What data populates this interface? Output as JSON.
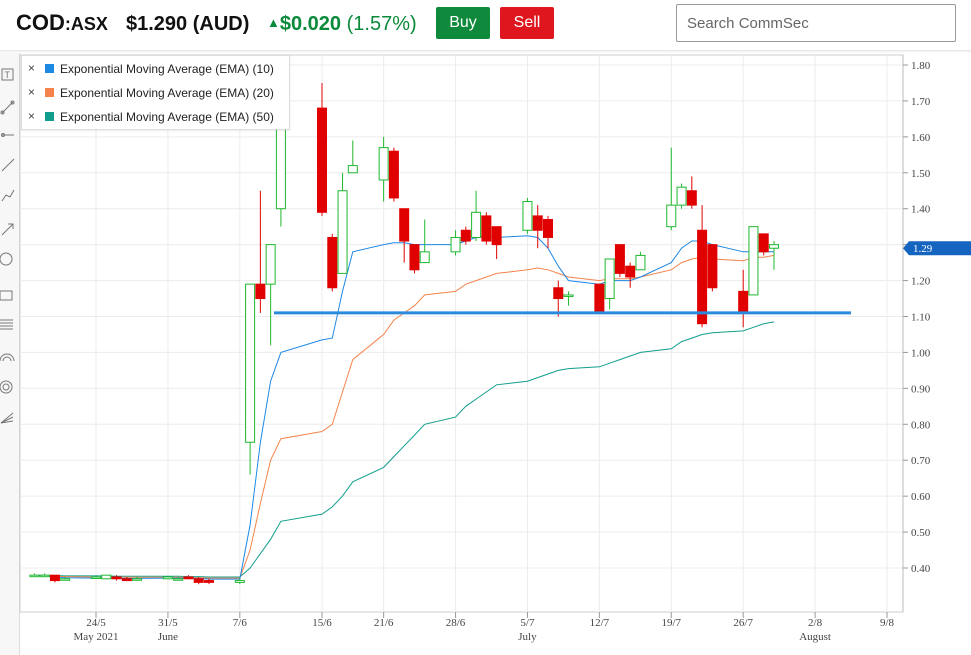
{
  "header": {
    "ticker": "COD",
    "exchange": ":ASX",
    "price": "$1.290 (AUD)",
    "change_arrow": "▲",
    "change_amount": "$0.020",
    "change_percent": "(1.57%)",
    "buy_label": "Buy",
    "sell_label": "Sell",
    "search_placeholder": "Search CommSec",
    "colors": {
      "up": "#0a8a3a",
      "buy": "#0f8a3c",
      "sell": "#e0161e"
    }
  },
  "toolbar": {
    "icons": [
      "text-tool-icon",
      "line-tool-icon",
      "ray-tool-icon",
      "trendline-icon",
      "polyline-icon",
      "arrow-tool-icon",
      "circle-tool-icon",
      "rectangle-tool-icon",
      "fibonacci-icon",
      "arc-tool-icon",
      "spiral-tool-icon",
      "gann-fan-icon"
    ]
  },
  "legend": {
    "items": [
      {
        "label": "Exponential Moving Average (EMA) (10)",
        "color": "#1e88e5"
      },
      {
        "label": "Exponential Moving Average (EMA) (20)",
        "color": "#f4844c"
      },
      {
        "label": "Exponential Moving Average (EMA) (50)",
        "color": "#129e8c"
      }
    ],
    "remove_glyph": "×"
  },
  "chart_data": {
    "type": "candlestick",
    "title": "",
    "ylim": [
      0.3,
      1.82
    ],
    "yticks": [
      0.4,
      0.5,
      0.6,
      0.7,
      0.8,
      0.9,
      1.0,
      1.1,
      1.2,
      1.3,
      1.4,
      1.5,
      1.6,
      1.7,
      1.8
    ],
    "ytick_labels": [
      "0.40",
      "0.50",
      "0.60",
      "0.70",
      "0.80",
      "0.90",
      "1.00",
      "1.10",
      "1.20",
      "1.30",
      "1.40",
      "1.50",
      "1.60",
      "1.70",
      "1.80"
    ],
    "current_price_label": "1.29",
    "current_price": 1.29,
    "support_line": 1.11,
    "x_ticks": [
      {
        "date": "2021-05-24",
        "label": "24/5",
        "sub": "May 2021"
      },
      {
        "date": "2021-05-31",
        "label": "31/5",
        "sub": "June"
      },
      {
        "date": "2021-06-07",
        "label": "7/6",
        "sub": ""
      },
      {
        "date": "2021-06-15",
        "label": "15/6",
        "sub": ""
      },
      {
        "date": "2021-06-21",
        "label": "21/6",
        "sub": ""
      },
      {
        "date": "2021-06-28",
        "label": "28/6",
        "sub": ""
      },
      {
        "date": "2021-07-05",
        "label": "5/7",
        "sub": "July"
      },
      {
        "date": "2021-07-12",
        "label": "12/7",
        "sub": ""
      },
      {
        "date": "2021-07-19",
        "label": "19/7",
        "sub": ""
      },
      {
        "date": "2021-07-26",
        "label": "26/7",
        "sub": ""
      },
      {
        "date": "2021-08-02",
        "label": "2/8",
        "sub": "August"
      },
      {
        "date": "2021-08-09",
        "label": "9/8",
        "sub": ""
      }
    ],
    "grid": true,
    "candles": [
      {
        "d": "2021-05-18",
        "o": 0.38,
        "h": 0.385,
        "l": 0.375,
        "c": 0.38
      },
      {
        "d": "2021-05-19",
        "o": 0.38,
        "h": 0.385,
        "l": 0.375,
        "c": 0.38
      },
      {
        "d": "2021-05-20",
        "o": 0.38,
        "h": 0.38,
        "l": 0.36,
        "c": 0.365
      },
      {
        "d": "2021-05-21",
        "o": 0.37,
        "h": 0.375,
        "l": 0.37,
        "c": 0.37
      },
      {
        "d": "2021-05-24",
        "o": 0.375,
        "h": 0.38,
        "l": 0.37,
        "c": 0.375
      },
      {
        "d": "2021-05-25",
        "o": 0.37,
        "h": 0.38,
        "l": 0.37,
        "c": 0.38
      },
      {
        "d": "2021-05-26",
        "o": 0.375,
        "h": 0.38,
        "l": 0.365,
        "c": 0.37
      },
      {
        "d": "2021-05-27",
        "o": 0.37,
        "h": 0.375,
        "l": 0.365,
        "c": 0.365
      },
      {
        "d": "2021-05-28",
        "o": 0.37,
        "h": 0.375,
        "l": 0.365,
        "c": 0.37
      },
      {
        "d": "2021-05-31",
        "o": 0.37,
        "h": 0.375,
        "l": 0.37,
        "c": 0.375
      },
      {
        "d": "2021-06-01",
        "o": 0.37,
        "h": 0.375,
        "l": 0.37,
        "c": 0.37
      },
      {
        "d": "2021-06-02",
        "o": 0.375,
        "h": 0.38,
        "l": 0.37,
        "c": 0.37
      },
      {
        "d": "2021-06-03",
        "o": 0.37,
        "h": 0.375,
        "l": 0.355,
        "c": 0.36
      },
      {
        "d": "2021-06-04",
        "o": 0.365,
        "h": 0.37,
        "l": 0.355,
        "c": 0.36
      },
      {
        "d": "2021-06-07",
        "o": 0.36,
        "h": 0.37,
        "l": 0.355,
        "c": 0.365
      },
      {
        "d": "2021-06-08",
        "o": 0.75,
        "h": 1.19,
        "l": 0.66,
        "c": 1.19
      },
      {
        "d": "2021-06-09",
        "o": 1.19,
        "h": 1.45,
        "l": 1.11,
        "c": 1.15
      },
      {
        "d": "2021-06-10",
        "o": 1.19,
        "h": 1.3,
        "l": 1.02,
        "c": 1.3
      },
      {
        "d": "2021-06-11",
        "o": 1.4,
        "h": 1.72,
        "l": 1.35,
        "c": 1.69
      },
      {
        "d": "2021-06-15",
        "o": 1.68,
        "h": 1.75,
        "l": 1.38,
        "c": 1.39
      },
      {
        "d": "2021-06-16",
        "o": 1.32,
        "h": 1.33,
        "l": 1.17,
        "c": 1.18
      },
      {
        "d": "2021-06-17",
        "o": 1.22,
        "h": 1.5,
        "l": 1.22,
        "c": 1.45
      },
      {
        "d": "2021-06-18",
        "o": 1.5,
        "h": 1.59,
        "l": 1.5,
        "c": 1.52
      },
      {
        "d": "2021-06-21",
        "o": 1.48,
        "h": 1.6,
        "l": 1.42,
        "c": 1.57
      },
      {
        "d": "2021-06-22",
        "o": 1.56,
        "h": 1.57,
        "l": 1.42,
        "c": 1.43
      },
      {
        "d": "2021-06-23",
        "o": 1.4,
        "h": 1.4,
        "l": 1.25,
        "c": 1.31
      },
      {
        "d": "2021-06-24",
        "o": 1.3,
        "h": 1.3,
        "l": 1.22,
        "c": 1.23
      },
      {
        "d": "2021-06-25",
        "o": 1.25,
        "h": 1.37,
        "l": 1.25,
        "c": 1.28
      },
      {
        "d": "2021-06-28",
        "o": 1.28,
        "h": 1.34,
        "l": 1.27,
        "c": 1.32
      },
      {
        "d": "2021-06-29",
        "o": 1.34,
        "h": 1.35,
        "l": 1.3,
        "c": 1.31
      },
      {
        "d": "2021-06-30",
        "o": 1.32,
        "h": 1.45,
        "l": 1.31,
        "c": 1.39
      },
      {
        "d": "2021-07-01",
        "o": 1.38,
        "h": 1.39,
        "l": 1.3,
        "c": 1.31
      },
      {
        "d": "2021-07-02",
        "o": 1.35,
        "h": 1.35,
        "l": 1.26,
        "c": 1.3
      },
      {
        "d": "2021-07-05",
        "o": 1.34,
        "h": 1.43,
        "l": 1.33,
        "c": 1.42
      },
      {
        "d": "2021-07-06",
        "o": 1.38,
        "h": 1.41,
        "l": 1.29,
        "c": 1.34
      },
      {
        "d": "2021-07-07",
        "o": 1.37,
        "h": 1.38,
        "l": 1.29,
        "c": 1.32
      },
      {
        "d": "2021-07-08",
        "o": 1.18,
        "h": 1.2,
        "l": 1.1,
        "c": 1.15
      },
      {
        "d": "2021-07-09",
        "o": 1.16,
        "h": 1.17,
        "l": 1.13,
        "c": 1.16
      },
      {
        "d": "2021-07-12",
        "o": 1.19,
        "h": 1.19,
        "l": 1.11,
        "c": 1.11
      },
      {
        "d": "2021-07-13",
        "o": 1.15,
        "h": 1.26,
        "l": 1.12,
        "c": 1.26
      },
      {
        "d": "2021-07-14",
        "o": 1.3,
        "h": 1.3,
        "l": 1.21,
        "c": 1.22
      },
      {
        "d": "2021-07-15",
        "o": 1.24,
        "h": 1.25,
        "l": 1.18,
        "c": 1.21
      },
      {
        "d": "2021-07-16",
        "o": 1.23,
        "h": 1.28,
        "l": 1.23,
        "c": 1.27
      },
      {
        "d": "2021-07-19",
        "o": 1.35,
        "h": 1.57,
        "l": 1.34,
        "c": 1.41
      },
      {
        "d": "2021-07-20",
        "o": 1.41,
        "h": 1.47,
        "l": 1.4,
        "c": 1.46
      },
      {
        "d": "2021-07-21",
        "o": 1.45,
        "h": 1.49,
        "l": 1.4,
        "c": 1.41
      },
      {
        "d": "2021-07-22",
        "o": 1.34,
        "h": 1.41,
        "l": 1.07,
        "c": 1.08
      },
      {
        "d": "2021-07-23",
        "o": 1.3,
        "h": 1.3,
        "l": 1.17,
        "c": 1.18
      },
      {
        "d": "2021-07-26",
        "o": 1.17,
        "h": 1.23,
        "l": 1.07,
        "c": 1.11
      },
      {
        "d": "2021-07-27",
        "o": 1.16,
        "h": 1.35,
        "l": 1.16,
        "c": 1.35
      },
      {
        "d": "2021-07-28",
        "o": 1.33,
        "h": 1.33,
        "l": 1.27,
        "c": 1.28
      },
      {
        "d": "2021-07-29",
        "o": 1.29,
        "h": 1.31,
        "l": 1.23,
        "c": 1.3
      }
    ],
    "ema_10": [
      0.38,
      0.378,
      0.375,
      0.373,
      0.372,
      0.372,
      0.372,
      0.371,
      0.371,
      0.372,
      0.372,
      0.372,
      0.371,
      0.369,
      0.369,
      0.52,
      0.75,
      0.92,
      1.0,
      1.035,
      1.04,
      1.17,
      1.28,
      1.3,
      1.305,
      1.305,
      1.3,
      1.3,
      1.3,
      1.31,
      1.32,
      1.325,
      1.32,
      1.325,
      1.32,
      1.29,
      1.24,
      1.2,
      1.19,
      1.2,
      1.2,
      1.2,
      1.21,
      1.25,
      1.29,
      1.31,
      1.31,
      1.3,
      1.28,
      1.28,
      1.28,
      1.28
    ],
    "ema_20": [
      0.38,
      0.379,
      0.377,
      0.376,
      0.375,
      0.375,
      0.375,
      0.374,
      0.374,
      0.374,
      0.374,
      0.374,
      0.373,
      0.372,
      0.372,
      0.45,
      0.58,
      0.7,
      0.76,
      0.78,
      0.8,
      0.89,
      0.98,
      1.05,
      1.09,
      1.11,
      1.13,
      1.16,
      1.17,
      1.19,
      1.2,
      1.21,
      1.22,
      1.23,
      1.235,
      1.23,
      1.22,
      1.21,
      1.2,
      1.205,
      1.205,
      1.205,
      1.21,
      1.23,
      1.25,
      1.26,
      1.265,
      1.26,
      1.255,
      1.265,
      1.265,
      1.27
    ],
    "ema_50": [
      0.38,
      0.38,
      0.379,
      0.378,
      0.378,
      0.378,
      0.377,
      0.377,
      0.377,
      0.377,
      0.377,
      0.376,
      0.376,
      0.375,
      0.375,
      0.4,
      0.44,
      0.48,
      0.53,
      0.55,
      0.57,
      0.6,
      0.64,
      0.68,
      0.71,
      0.74,
      0.77,
      0.8,
      0.82,
      0.85,
      0.87,
      0.89,
      0.91,
      0.92,
      0.93,
      0.94,
      0.95,
      0.955,
      0.96,
      0.97,
      0.98,
      0.99,
      1.0,
      1.01,
      1.03,
      1.04,
      1.05,
      1.055,
      1.06,
      1.07,
      1.08,
      1.085
    ]
  }
}
